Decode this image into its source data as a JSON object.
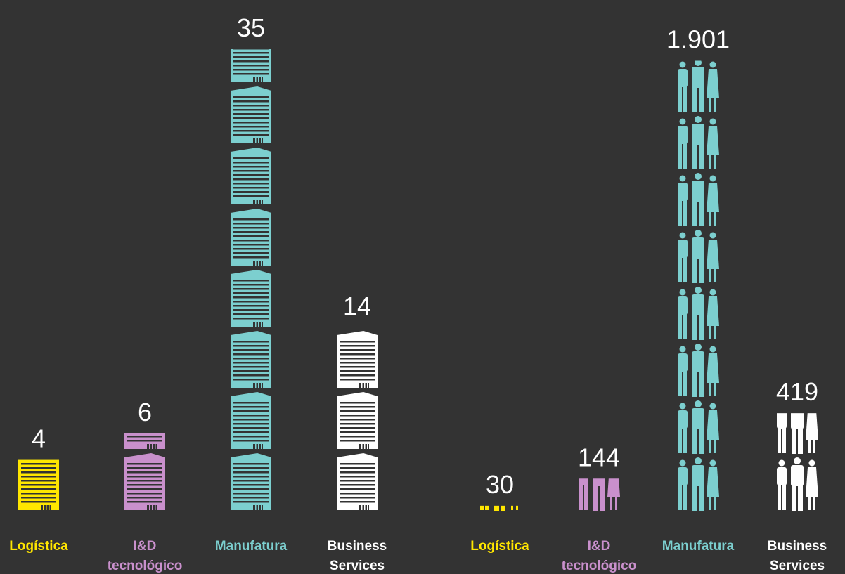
{
  "chart_data": [
    {
      "type": "pictogram",
      "icon": "building",
      "categories": [
        "Logística",
        "I&D tecnológico",
        "Manufatura",
        "Business Services"
      ],
      "values": [
        4,
        6,
        35,
        14
      ],
      "colors": [
        "#ffe600",
        "#c990cc",
        "#7ccfcf",
        "#ffffff"
      ]
    },
    {
      "type": "pictogram",
      "icon": "people",
      "categories": [
        "Logística",
        "I&D tecnológico",
        "Manufatura",
        "Business Services"
      ],
      "values": [
        30,
        144,
        1901,
        419
      ],
      "value_labels": [
        "30",
        "144",
        "1.901",
        "419"
      ],
      "colors": [
        "#ffe600",
        "#c990cc",
        "#7ccfcf",
        "#ffffff"
      ]
    }
  ]
}
